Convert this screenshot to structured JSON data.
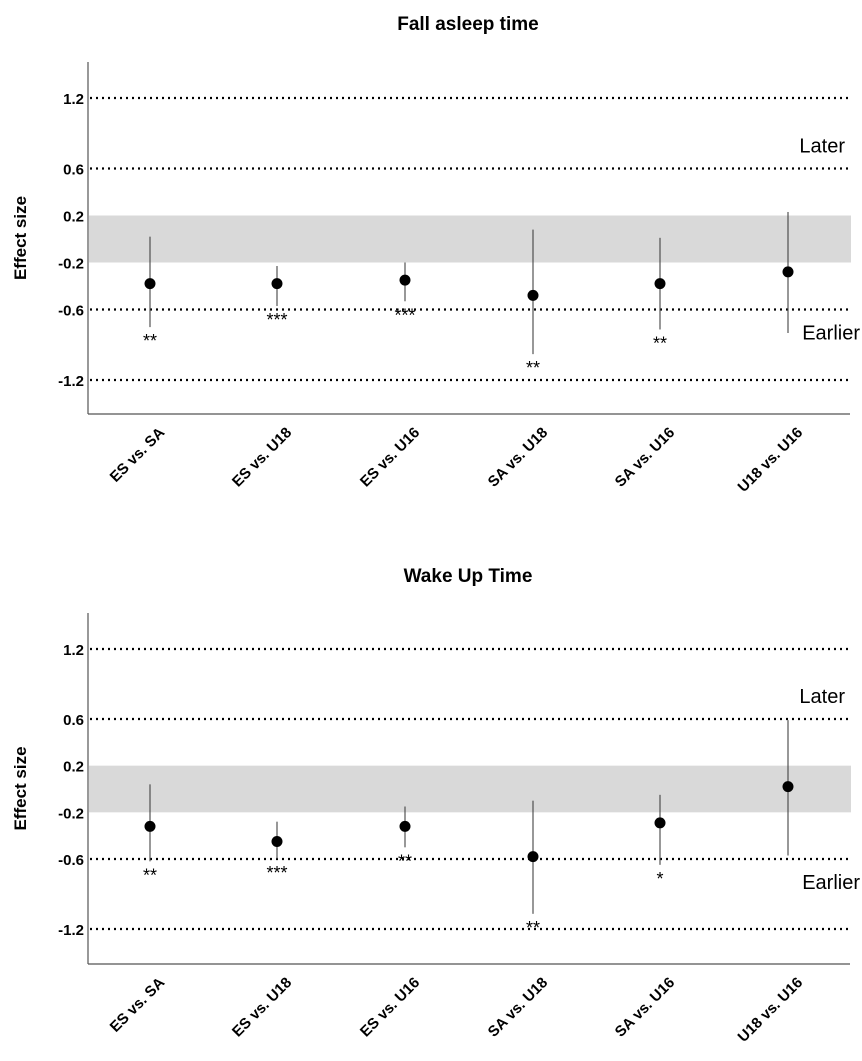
{
  "chart_data": [
    {
      "type": "scatter",
      "title": "Fall asleep time",
      "ylabel": "Effect size",
      "xlabel": "",
      "categories": [
        "ES vs. SA",
        "ES vs. U18",
        "ES vs. U16",
        "SA vs. U18",
        "SA vs. U16",
        "U18 vs. U16"
      ],
      "yticks": [
        "1.2",
        "0.6",
        "0.2",
        "-0.2",
        "-0.6",
        "-1.2"
      ],
      "ylim": [
        -1.6,
        1.5
      ],
      "reference_lines": [
        1.2,
        0.6,
        -0.6,
        -1.2
      ],
      "band": [
        -0.2,
        0.2
      ],
      "band_color": "#d9d9d9",
      "annotations": {
        "upper": "Later",
        "lower": "Earlier"
      },
      "series": [
        {
          "values": [
            -0.38,
            -0.38,
            -0.35,
            -0.48,
            -0.38,
            -0.28
          ],
          "lower": [
            -0.75,
            -0.57,
            -0.53,
            -0.98,
            -0.77,
            -0.8
          ],
          "upper": [
            0.02,
            -0.23,
            -0.2,
            0.08,
            0.01,
            0.23
          ],
          "significance": [
            "**",
            "***",
            "***",
            "**",
            "**",
            ""
          ]
        }
      ],
      "grid": false
    },
    {
      "type": "scatter",
      "title": "Wake Up Time",
      "ylabel": "Effect size",
      "xlabel": "",
      "categories": [
        "ES vs. SA",
        "ES vs. U18",
        "ES vs. U16",
        "SA vs. U18",
        "SA vs. U16",
        "U18 vs. U16"
      ],
      "yticks": [
        "1.2",
        "0.6",
        "0.2",
        "-0.2",
        "-0.6",
        "-1.2"
      ],
      "ylim": [
        -1.6,
        1.5
      ],
      "reference_lines": [
        1.2,
        0.6,
        -0.6,
        -1.2
      ],
      "band": [
        -0.2,
        0.2
      ],
      "band_color": "#d9d9d9",
      "annotations": {
        "upper": "Later",
        "lower": "Earlier"
      },
      "series": [
        {
          "values": [
            -0.32,
            -0.45,
            -0.32,
            -0.58,
            -0.29,
            0.02
          ],
          "lower": [
            -0.62,
            -0.6,
            -0.5,
            -1.07,
            -0.65,
            -0.57
          ],
          "upper": [
            0.04,
            -0.28,
            -0.15,
            -0.1,
            -0.05,
            0.59
          ],
          "significance": [
            "**",
            "***",
            "**",
            "**",
            "*",
            ""
          ]
        }
      ],
      "grid": false
    }
  ]
}
